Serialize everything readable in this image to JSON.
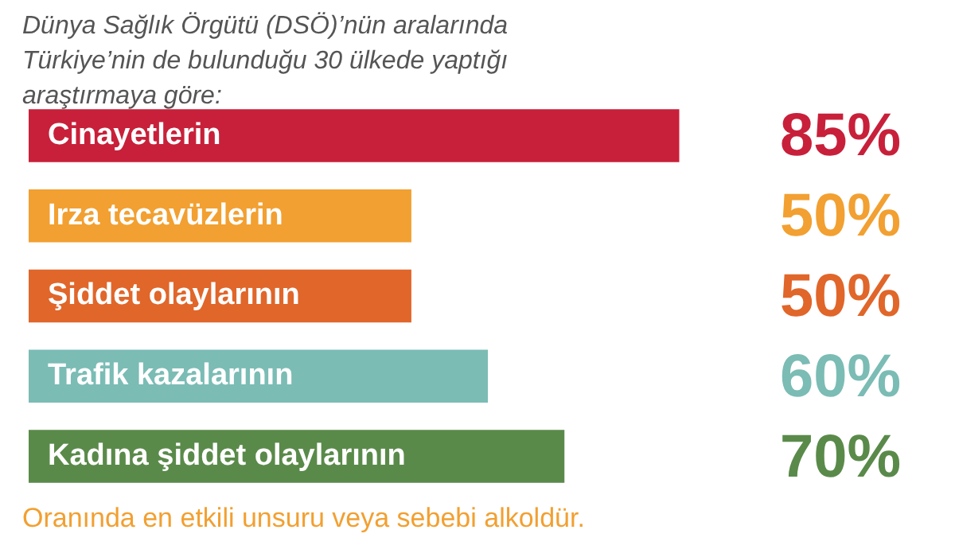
{
  "chart_data": {
    "type": "bar",
    "orientation": "horizontal",
    "title": "Dünya Sağlık Örgütü (DSÖ)’nün aralarında Türkiye’nin de bulunduğu 30 ülkede yaptığı araştırmaya göre:",
    "categories": [
      "Cinayetlerin",
      "Irza tecavüzlerin",
      "Şiddet olaylarının",
      "Trafik kazalarının",
      "Kadına şiddet olaylarının"
    ],
    "values": [
      85,
      50,
      50,
      60,
      70
    ],
    "colors": [
      "#c8203a",
      "#f2a031",
      "#e0662a",
      "#7bbcb5",
      "#5a8a4a"
    ],
    "value_labels": [
      "85%",
      "50%",
      "50%",
      "60%",
      "70%"
    ],
    "annotations": [
      "Oranında en etkili unsuru veya sebebi alkoldür."
    ],
    "legend": false,
    "tick_labels": false
  }
}
